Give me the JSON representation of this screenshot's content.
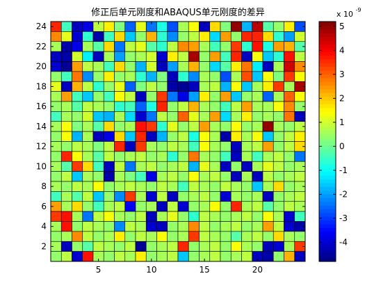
{
  "chart_data": {
    "type": "heatmap",
    "title": "修正后单元刚度和ABAQUS单元刚度的差异",
    "xlabel": "",
    "ylabel": "",
    "rows": 24,
    "cols": 24,
    "xlim": [
      0.5,
      24.5
    ],
    "ylim": [
      0.5,
      24.5
    ],
    "x_ticks": [
      5,
      10,
      15,
      20
    ],
    "y_ticks": [
      2,
      4,
      6,
      8,
      10,
      12,
      14,
      16,
      18,
      20,
      22,
      24
    ],
    "colorbar": {
      "range": [
        -4.8,
        5.2
      ],
      "ticks": [
        -4,
        -3,
        -2,
        -1,
        0,
        1,
        2,
        3,
        4,
        5
      ],
      "multiplier_label": "x 10",
      "multiplier_exponent": "-9",
      "colormap": "jet"
    },
    "values_row_order": "top row = y 24, bottom row = y 1",
    "values": [
      [
        3.6,
        -0.4,
        -4.2,
        -3.8,
        0.8,
        1.6,
        0.2,
        -2.6,
        1.2,
        -2.4,
        -0.8,
        -2.8,
        0.6,
        1.4,
        -4.2,
        1.8,
        0.2,
        5.0,
        -1.8,
        4.6,
        -0.2,
        0.4,
        1.6,
        -2.8
      ],
      [
        2.6,
        1.2,
        -4.0,
        -0.6,
        -4.4,
        -0.4,
        1.8,
        -1.6,
        0.4,
        2.2,
        -0.6,
        -2.2,
        0.4,
        0.8,
        1.6,
        -1.4,
        2.4,
        0.4,
        3.6,
        3.6,
        1.8,
        -0.6,
        -2.0,
        1.0
      ],
      [
        0.6,
        -4.4,
        -3.8,
        0.6,
        -0.2,
        1.8,
        -2.4,
        0.8,
        1.2,
        -0.2,
        -0.6,
        0.8,
        2.6,
        2.4,
        0.6,
        -0.4,
        0.4,
        3.4,
        -0.6,
        3.8,
        -0.8,
        2.4,
        2.2,
        -0.2
      ],
      [
        -4.2,
        -4.4,
        1.0,
        -1.2,
        -4.2,
        0.6,
        -2.0,
        0.4,
        0.6,
        1.0,
        -4.0,
        1.6,
        0.8,
        4.8,
        0.4,
        2.4,
        -0.4,
        3.6,
        -4.2,
        1.4,
        -1.6,
        -0.6,
        3.8,
        0.8
      ],
      [
        -4.0,
        -4.6,
        2.4,
        0.8,
        0.6,
        -0.4,
        1.8,
        0.4,
        -1.8,
        1.0,
        -4.2,
        -2.0,
        0.6,
        2.2,
        0.4,
        -1.4,
        -0.2,
        1.6,
        2.8,
        -1.2,
        -4.2,
        0.6,
        4.4,
        2.6
      ],
      [
        0.4,
        -0.4,
        2.8,
        -2.2,
        0.4,
        1.6,
        0.4,
        0.6,
        -0.6,
        -1.8,
        0.2,
        -4.2,
        -0.6,
        -2.2,
        0.6,
        0.4,
        -2.8,
        0.6,
        3.2,
        -1.6,
        1.4,
        0.2,
        3.4,
        1.4
      ],
      [
        1.2,
        -4.2,
        2.2,
        0.8,
        -0.6,
        0.4,
        1.2,
        -2.6,
        0.2,
        0.8,
        0.4,
        -4.4,
        -4.6,
        -4.2,
        0.6,
        0.8,
        -1.8,
        1.4,
        -1.6,
        0.6,
        1.6,
        3.4,
        0.6,
        4.8
      ],
      [
        0.6,
        2.4,
        -0.4,
        -1.6,
        0.4,
        -0.4,
        1.4,
        0.8,
        -4.2,
        0.4,
        3.4,
        -2.4,
        -3.8,
        -2.0,
        1.6,
        0.4,
        2.4,
        -1.6,
        0.4,
        0.6,
        -2.6,
        0.6,
        3.0,
        1.4
      ],
      [
        0.4,
        0.6,
        -0.2,
        0.8,
        0.6,
        0.4,
        -0.6,
        -0.4,
        -2.6,
        -0.8,
        3.6,
        0.4,
        0.8,
        2.2,
        0.6,
        0.4,
        -0.4,
        0.8,
        2.4,
        0.6,
        0.6,
        1.4,
        2.6,
        0.4
      ],
      [
        -0.4,
        0.6,
        0.4,
        1.0,
        -1.6,
        -1.8,
        0.6,
        -1.4,
        -4.0,
        -2.4,
        0.8,
        0.4,
        3.0,
        1.2,
        0.6,
        2.4,
        -1.4,
        0.6,
        1.6,
        0.4,
        0.6,
        0.4,
        2.8,
        -4.2
      ],
      [
        0.6,
        1.4,
        0.2,
        0.6,
        -0.2,
        1.8,
        0.4,
        0.6,
        3.8,
        3.4,
        -0.6,
        1.2,
        0.4,
        0.8,
        2.4,
        0.6,
        0.4,
        1.4,
        0.4,
        0.6,
        5.0,
        0.6,
        0.4,
        0.8
      ],
      [
        0.4,
        1.4,
        -1.8,
        0.6,
        -4.2,
        -3.8,
        1.8,
        -1.6,
        3.6,
        -4.2,
        -1.8,
        0.4,
        0.8,
        -0.8,
        1.4,
        0.6,
        -4.4,
        1.6,
        0.6,
        1.4,
        -1.6,
        0.4,
        0.8,
        1.6
      ],
      [
        0.6,
        0.4,
        0.8,
        0.6,
        0.2,
        0.8,
        3.6,
        -4.2,
        3.4,
        0.6,
        0.4,
        0.8,
        0.6,
        -0.4,
        1.4,
        0.6,
        0.4,
        -4.2,
        0.6,
        0.8,
        2.4,
        0.4,
        0.8,
        1.8
      ],
      [
        0.4,
        3.6,
        1.4,
        0.6,
        -0.2,
        0.8,
        0.4,
        0.6,
        0.8,
        0.4,
        0.6,
        -0.6,
        0.4,
        2.8,
        0.6,
        0.4,
        -0.4,
        -4.2,
        0.6,
        -0.4,
        0.6,
        0.8,
        0.4,
        -2.4
      ],
      [
        0.6,
        -0.2,
        3.4,
        1.8,
        -0.4,
        -4.2,
        0.8,
        -2.4,
        0.6,
        0.8,
        0.4,
        0.6,
        0.8,
        -1.8,
        1.2,
        0.6,
        -4.2,
        0.4,
        -4.2,
        0.6,
        1.2,
        0.8,
        0.4,
        0.6
      ],
      [
        0.4,
        0.8,
        -1.6,
        0.6,
        0.4,
        -4.4,
        0.6,
        0.2,
        -0.4,
        -3.8,
        0.6,
        0.8,
        0.4,
        1.4,
        0.6,
        0.8,
        0.4,
        -4.2,
        0.6,
        -4.2,
        0.8,
        0.4,
        0.6,
        0.8
      ],
      [
        0.6,
        0.4,
        0.8,
        0.6,
        1.4,
        0.4,
        0.6,
        0.8,
        0.6,
        0.4,
        0.8,
        0.6,
        -0.4,
        0.8,
        0.6,
        0.4,
        0.8,
        0.6,
        0.4,
        -1.6,
        0.6,
        1.8,
        0.4,
        0.6
      ],
      [
        -0.4,
        0.6,
        -0.2,
        0.8,
        -1.6,
        0.4,
        -2.2,
        3.4,
        0.6,
        -4.0,
        0.8,
        -4.2,
        0.4,
        0.6,
        0.8,
        0.4,
        -4.0,
        0.6,
        0.4,
        0.6,
        -4.2,
        0.4,
        0.6,
        0.8
      ],
      [
        2.4,
        0.6,
        1.8,
        0.4,
        -0.4,
        0.6,
        0.8,
        -3.6,
        0.4,
        0.6,
        -4.2,
        0.8,
        -4.0,
        0.4,
        0.6,
        1.4,
        0.4,
        3.6,
        0.6,
        0.8,
        -0.2,
        0.4,
        0.8,
        0.6
      ],
      [
        3.4,
        3.8,
        0.6,
        -2.4,
        0.8,
        1.4,
        0.6,
        0.4,
        0.8,
        -4.2,
        0.6,
        1.2,
        0.4,
        -0.6,
        0.8,
        0.6,
        0.4,
        0.6,
        0.8,
        0.4,
        1.4,
        0.6,
        -4.0,
        -0.4
      ],
      [
        0.6,
        3.8,
        0.4,
        0.8,
        0.6,
        0.4,
        -2.2,
        0.8,
        0.6,
        -4.0,
        -4.2,
        0.4,
        0.6,
        2.6,
        0.8,
        0.4,
        0.6,
        0.8,
        0.4,
        0.6,
        2.4,
        0.8,
        -4.0,
        -4.4
      ],
      [
        0.4,
        0.6,
        2.6,
        0.8,
        0.4,
        0.6,
        1.6,
        0.4,
        0.8,
        0.6,
        1.4,
        0.4,
        0.6,
        3.4,
        0.8,
        0.6,
        0.4,
        -0.2,
        0.6,
        0.8,
        0.4,
        1.8,
        0.6,
        0.4
      ],
      [
        0.6,
        -4.2,
        0.4,
        -0.2,
        0.8,
        0.6,
        0.4,
        0.8,
        -4.6,
        0.4,
        0.6,
        0.8,
        3.6,
        0.4,
        0.6,
        0.8,
        0.4,
        1.4,
        0.6,
        0.4,
        -4.2,
        -4.0,
        0.6,
        3.4
      ],
      [
        0.4,
        0.8,
        -4.0,
        3.8,
        0.6,
        0.4,
        0.8,
        0.6,
        1.6,
        0.4,
        0.6,
        0.8,
        -1.6,
        0.4,
        0.6,
        0.8,
        0.4,
        0.6,
        0.8,
        -4.2,
        -4.4,
        0.4,
        2.2,
        -4.2
      ]
    ]
  }
}
